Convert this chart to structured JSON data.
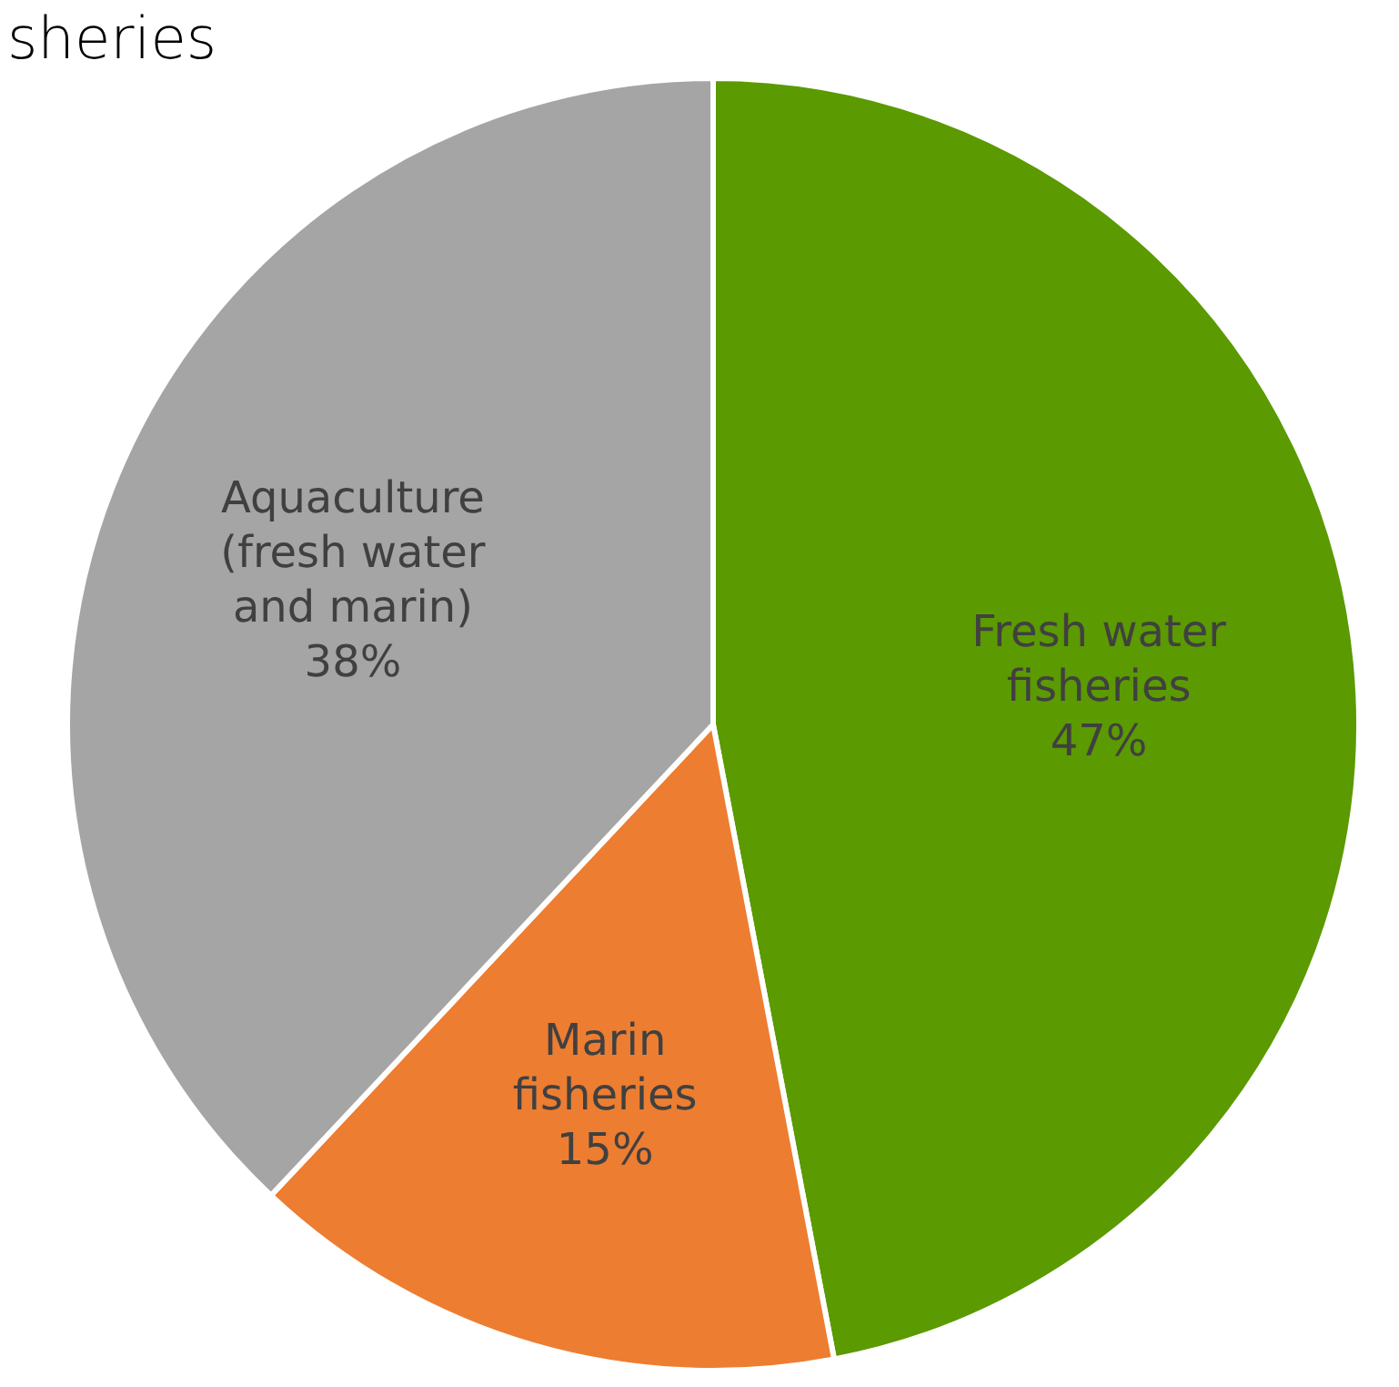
{
  "chart_data": {
    "type": "pie",
    "title": "sheries",
    "categories": [
      "Fresh water fisheries",
      "Marin fisheries",
      "Aquaculture (fresh water and marin)"
    ],
    "values": [
      47,
      15,
      38
    ],
    "colors": [
      "#5b9a00",
      "#ed7d31",
      "#a5a5a5"
    ],
    "value_labels": [
      "47%",
      "15%",
      "38%"
    ]
  }
}
